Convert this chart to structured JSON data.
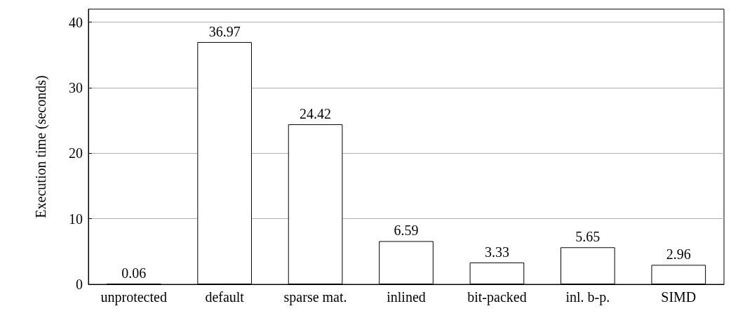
{
  "chart_data": {
    "type": "bar",
    "ylabel": "Execution time (seconds)",
    "categories": [
      "unprotected",
      "default",
      "sparse mat.",
      "inlined",
      "bit-packed",
      "inl. b-p.",
      "SIMD"
    ],
    "values": [
      0.06,
      36.97,
      24.42,
      6.59,
      3.33,
      5.65,
      2.96
    ],
    "color": "#ffffff",
    "ylim": [
      0,
      42
    ],
    "yticks": [
      0,
      10,
      20,
      30,
      40
    ],
    "grid": "y",
    "data_labels": true
  }
}
